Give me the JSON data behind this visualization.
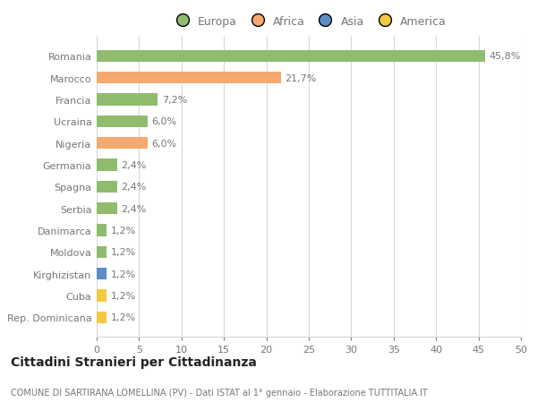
{
  "categories": [
    "Rep. Dominicana",
    "Cuba",
    "Kirghizistan",
    "Moldova",
    "Danimarca",
    "Serbia",
    "Spagna",
    "Germania",
    "Nigeria",
    "Ucraina",
    "Francia",
    "Marocco",
    "Romania"
  ],
  "values": [
    1.2,
    1.2,
    1.2,
    1.2,
    1.2,
    2.4,
    2.4,
    2.4,
    6.0,
    6.0,
    7.2,
    21.7,
    45.8
  ],
  "labels": [
    "1,2%",
    "1,2%",
    "1,2%",
    "1,2%",
    "1,2%",
    "2,4%",
    "2,4%",
    "2,4%",
    "6,0%",
    "6,0%",
    "7,2%",
    "21,7%",
    "45,8%"
  ],
  "colors": [
    "#f5c842",
    "#f5c842",
    "#5b8ec4",
    "#8fbc6e",
    "#8fbc6e",
    "#8fbc6e",
    "#8fbc6e",
    "#8fbc6e",
    "#f5a96e",
    "#8fbc6e",
    "#8fbc6e",
    "#f5a96e",
    "#8fbc6e"
  ],
  "legend": [
    {
      "label": "Europa",
      "color": "#8fbc6e"
    },
    {
      "label": "Africa",
      "color": "#f5a96e"
    },
    {
      "label": "Asia",
      "color": "#5b8ec4"
    },
    {
      "label": "America",
      "color": "#f5c842"
    }
  ],
  "xlim": [
    0,
    50
  ],
  "xticks": [
    0,
    5,
    10,
    15,
    20,
    25,
    30,
    35,
    40,
    45,
    50
  ],
  "title": "Cittadini Stranieri per Cittadinanza",
  "subtitle": "COMUNE DI SARTIRANA LOMELLINA (PV) - Dati ISTAT al 1° gennaio - Elaborazione TUTTITALIA.IT",
  "background_color": "#ffffff",
  "grid_color": "#d8d8d8",
  "label_color": "#777777",
  "bar_height": 0.55
}
